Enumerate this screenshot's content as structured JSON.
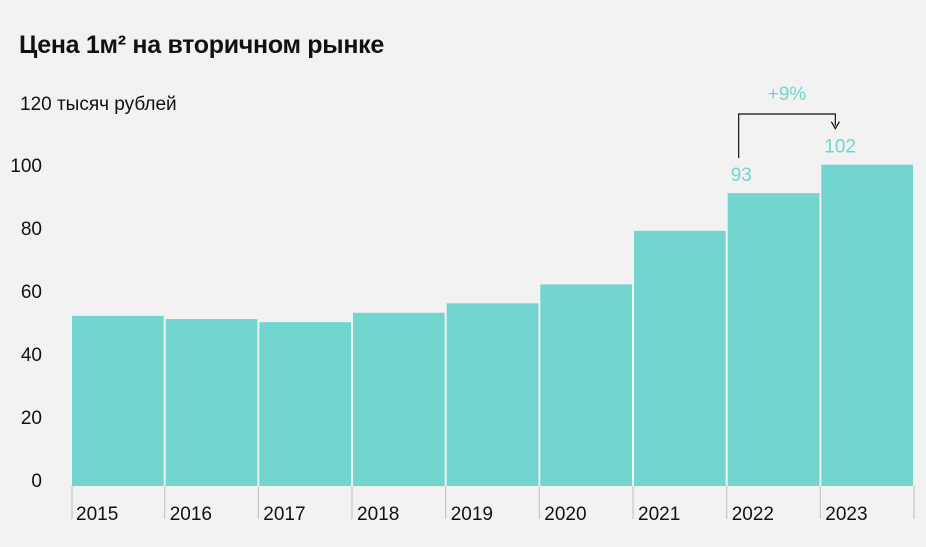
{
  "chart_data": {
    "type": "bar",
    "title": "Цена 1м² на вторичном рынке",
    "ylabel": "120 тысяч рублей",
    "xlabel": "",
    "categories": [
      "2015",
      "2016",
      "2017",
      "2018",
      "2019",
      "2020",
      "2021",
      "2022",
      "2023"
    ],
    "values": [
      54,
      53,
      52,
      55,
      58,
      64,
      81,
      93,
      102
    ],
    "data_labels": [
      {
        "category": "2022",
        "text": "93"
      },
      {
        "category": "2023",
        "text": "102"
      }
    ],
    "annotation": {
      "from": "2022",
      "to": "2023",
      "text": "+9%"
    },
    "yticks": [
      0,
      20,
      40,
      60,
      80,
      100
    ],
    "ylim": [
      0,
      120
    ],
    "grid": false
  },
  "colors": {
    "bar": "#72d5d0",
    "accent": "#72d5d0",
    "text": "#111111",
    "background": "#f2f2f2",
    "axis": "#111111"
  }
}
